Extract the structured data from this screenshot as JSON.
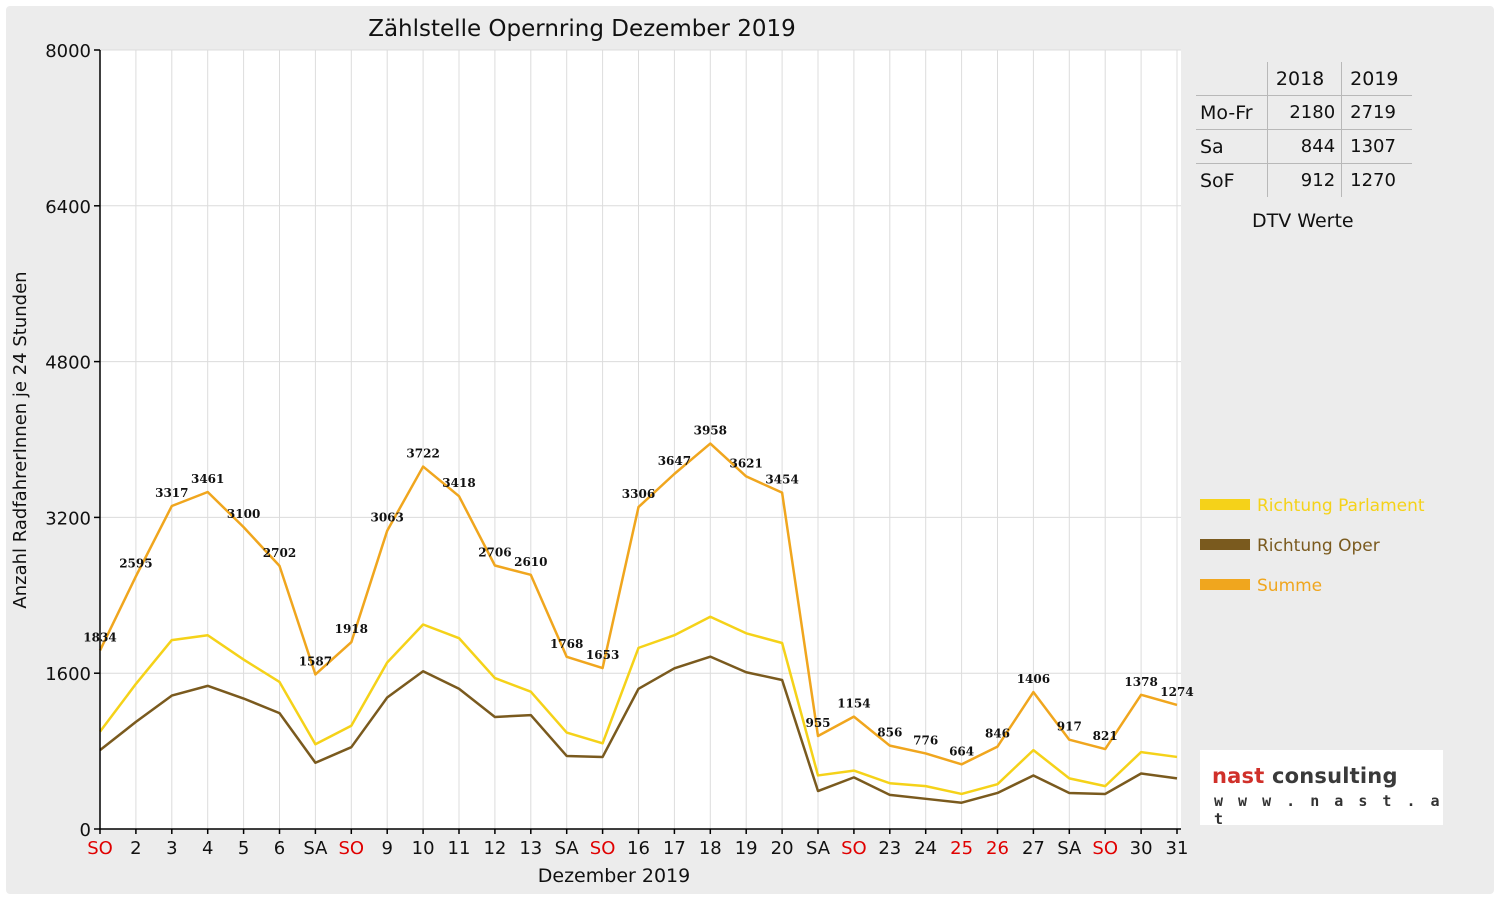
{
  "chart_data": {
    "type": "line",
    "title": "Zählstelle Opernring Dezember 2019",
    "xlabel": "Dezember 2019",
    "ylabel": "Anzahl RadfahrerInnen je 24 Stunden",
    "ylim": [
      0,
      8000
    ],
    "yticks": [
      0,
      1600,
      3200,
      4800,
      6400,
      8000
    ],
    "grid": true,
    "legend_position": "right",
    "categories": [
      "SO",
      "2",
      "3",
      "4",
      "5",
      "6",
      "SA",
      "SO",
      "9",
      "10",
      "11",
      "12",
      "13",
      "SA",
      "SO",
      "16",
      "17",
      "18",
      "19",
      "20",
      "SA",
      "SO",
      "23",
      "24",
      "25",
      "26",
      "27",
      "SA",
      "SO",
      "30",
      "31"
    ],
    "red_categories": [
      0,
      7,
      14,
      21,
      24,
      25,
      28
    ],
    "series": [
      {
        "name": "Richtung Parlament",
        "color": "#f5d219",
        "values": [
          1000,
          1490,
          1940,
          1990,
          1740,
          1510,
          870,
          1060,
          1710,
          2100,
          1960,
          1550,
          1410,
          990,
          880,
          1860,
          1990,
          2180,
          2010,
          1910,
          550,
          600,
          470,
          440,
          360,
          460,
          810,
          520,
          440,
          790,
          740
        ]
      },
      {
        "name": "Richtung Oper",
        "color": "#7a5a1e",
        "values": [
          810,
          1100,
          1370,
          1470,
          1340,
          1190,
          680,
          840,
          1350,
          1620,
          1440,
          1150,
          1170,
          750,
          740,
          1440,
          1650,
          1770,
          1610,
          1530,
          390,
          530,
          350,
          310,
          270,
          370,
          550,
          370,
          360,
          570,
          520
        ]
      },
      {
        "name": "Summe",
        "color": "#f0a61e",
        "values": [
          1834,
          2595,
          3317,
          3461,
          3100,
          2702,
          1587,
          1918,
          3063,
          3722,
          3418,
          2706,
          2610,
          1768,
          1653,
          3306,
          3647,
          3958,
          3621,
          3454,
          955,
          1154,
          856,
          776,
          664,
          846,
          1406,
          917,
          821,
          1378,
          1274
        ]
      }
    ],
    "data_labels": [
      "1834",
      "2595",
      "3317",
      "3461",
      "3100",
      "2702",
      "1587",
      "1918",
      "3063",
      "3722",
      "3418",
      "2706",
      "2610",
      "1768",
      "1653",
      "3306",
      "3647",
      "3958",
      "3621",
      "3454",
      "955",
      "1154",
      "856",
      "776",
      "664",
      "846",
      "1406",
      "917",
      "821",
      "1378",
      "1274"
    ]
  },
  "dtv_table": {
    "headers": [
      "",
      "2018",
      "2019"
    ],
    "rows": [
      {
        "label": "Mo-Fr",
        "v2018": "2180",
        "v2019": "2719"
      },
      {
        "label": "Sa",
        "v2018": "844",
        "v2019": "1307"
      },
      {
        "label": "SoF",
        "v2018": "912",
        "v2019": "1270"
      }
    ],
    "caption": "DTV Werte"
  },
  "logo": {
    "word1": "nast",
    "word2": " consulting",
    "url": "w w w . n a s t . a t"
  },
  "colors": {
    "background": "#ececec",
    "plot_background": "#ffffff",
    "grid": "#dcdcdc",
    "red_label": "#e00000"
  }
}
